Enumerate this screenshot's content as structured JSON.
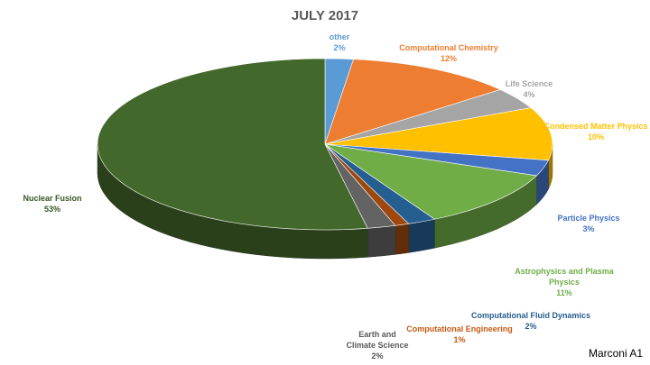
{
  "chart_data": {
    "type": "pie",
    "title": "JULY 2017",
    "legend": "none",
    "slices": [
      {
        "label": "other",
        "value": 2,
        "display": "2%",
        "color": "#5B9BD5",
        "textColor": "#5B9BD5"
      },
      {
        "label": "Computational Chemistry",
        "value": 12,
        "display": "12%",
        "color": "#ED7D31",
        "textColor": "#ED7D31"
      },
      {
        "label": "Life Science",
        "value": 4,
        "display": "4%",
        "color": "#A5A5A5",
        "textColor": "#A5A5A5"
      },
      {
        "label": "Condensed Matter Physics",
        "value": 10,
        "display": "10%",
        "color": "#FFC000",
        "textColor": "#FFC000"
      },
      {
        "label": "Particle Physics",
        "value": 3,
        "display": "3%",
        "color": "#4472C4",
        "textColor": "#4472C4"
      },
      {
        "label": "Astrophysics and Plasma Physics",
        "value": 11,
        "display": "11%",
        "color": "#70AD47",
        "textColor": "#70AD47"
      },
      {
        "label": "Computational Fluid Dynamics",
        "value": 2,
        "display": "2%",
        "color": "#255E91",
        "textColor": "#255E91"
      },
      {
        "label": "Computational Engineering",
        "value": 1,
        "display": "1%",
        "color": "#9E480E",
        "textColor": "#C55A11"
      },
      {
        "label": "Earth and Climate Science",
        "value": 2,
        "display": "2%",
        "color": "#636363",
        "textColor": "#595959"
      },
      {
        "label": "Nuclear Fusion",
        "value": 53,
        "display": "53%",
        "color": "#43682B",
        "textColor": "#375623"
      }
    ]
  },
  "footer": {
    "text": "Marconi A1"
  }
}
